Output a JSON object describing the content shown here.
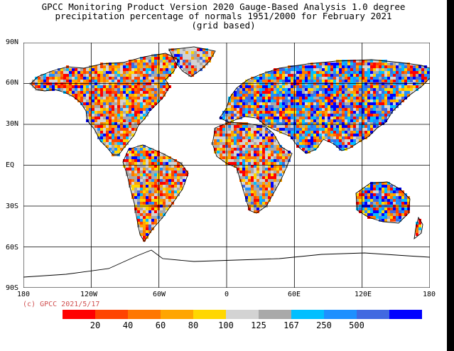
{
  "title": {
    "line1": "GPCC Monitoring Product Version 2020 Gauge-Based Analysis 1.0 degree",
    "line2": "precipitation percentage of normals 1951/2000 for February  2021",
    "line3": "(grid based)"
  },
  "lat_labels": [
    "90N",
    "60N",
    "30N",
    "EQ",
    "30S",
    "60S",
    "90S"
  ],
  "lon_labels": [
    "180",
    "120W",
    "60W",
    "0",
    "60E",
    "120E",
    "180"
  ],
  "copyright": "(c) GPCC 2021/5/17",
  "legend": {
    "colors": [
      "#ff0000",
      "#ff4400",
      "#ff7700",
      "#ffa500",
      "#ffd700",
      "#d3d3d3",
      "#a9a9a9",
      "#00bfff",
      "#1e90ff",
      "#4169e1",
      "#0000ff"
    ],
    "labels": [
      "20",
      "40",
      "60",
      "80",
      "100",
      "125",
      "167",
      "250",
      "500"
    ]
  },
  "map": {
    "projection": "equirectangular",
    "lon_range": [
      -180,
      180
    ],
    "lat_range": [
      -90,
      90
    ],
    "gridlines_every_deg": 30,
    "ocean_color": "#ffffff",
    "coastline_color": "#000000"
  }
}
